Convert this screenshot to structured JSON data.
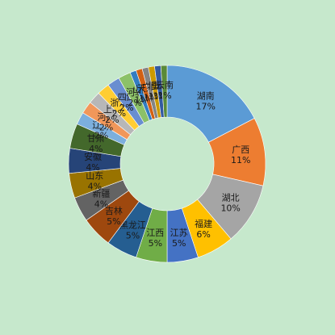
{
  "chart_data": {
    "type": "pie",
    "donut": true,
    "title": "",
    "legend": "none",
    "slices": [
      {
        "label": "湖南",
        "pct_label": "17%",
        "value": 17,
        "color": "#5b9bd5"
      },
      {
        "label": "广西",
        "pct_label": "11%",
        "value": 11,
        "color": "#ed7d31"
      },
      {
        "label": "湖北",
        "pct_label": "10%",
        "value": 10,
        "color": "#a5a5a5"
      },
      {
        "label": "福建",
        "pct_label": "6%",
        "value": 6,
        "color": "#ffc000"
      },
      {
        "label": "江苏",
        "pct_label": "5%",
        "value": 5,
        "color": "#4472c4"
      },
      {
        "label": "江西",
        "pct_label": "5%",
        "value": 5,
        "color": "#70ad47"
      },
      {
        "label": "黑龙江",
        "pct_label": "5%",
        "value": 5,
        "color": "#255e91"
      },
      {
        "label": "吉林",
        "pct_label": "5%",
        "value": 5,
        "color": "#9e480e"
      },
      {
        "label": "新疆",
        "pct_label": "4%",
        "value": 4,
        "color": "#636363"
      },
      {
        "label": "山东",
        "pct_label": "4%",
        "value": 4,
        "color": "#997300"
      },
      {
        "label": "安徽",
        "pct_label": "4%",
        "value": 4,
        "color": "#264478"
      },
      {
        "label": "甘肃",
        "pct_label": "4%",
        "value": 4,
        "color": "#43682b"
      },
      {
        "label": "辽宁",
        "pct_label": "2%",
        "value": 2,
        "color": "#7cafdd"
      },
      {
        "label": "河南",
        "pct_label": "2%",
        "value": 2,
        "color": "#f1975a"
      },
      {
        "label": "上海",
        "pct_label": "2%",
        "value": 2,
        "color": "#b7b7b7"
      },
      {
        "label": "浙江",
        "pct_label": "2%",
        "value": 2,
        "color": "#ffcd33"
      },
      {
        "label": "四川",
        "pct_label": "2%",
        "value": 2,
        "color": "#698ed0"
      },
      {
        "label": "河北",
        "pct_label": "2%",
        "value": 2,
        "color": "#8cc168"
      },
      {
        "label": "山西",
        "pct_label": "1%",
        "value": 1,
        "color": "#327dc2"
      },
      {
        "label": "天津",
        "pct_label": "1%",
        "value": 1,
        "color": "#d26012"
      },
      {
        "label": "广东",
        "pct_label": "1%",
        "value": 1,
        "color": "#848484"
      },
      {
        "label": "北京",
        "pct_label": "1%",
        "value": 1,
        "color": "#cc9a00"
      },
      {
        "label": "重庆",
        "pct_label": "1%",
        "value": 1,
        "color": "#335aa1"
      },
      {
        "label": "云南",
        "pct_label": "1%",
        "value": 1,
        "color": "#5a8a39"
      }
    ]
  }
}
